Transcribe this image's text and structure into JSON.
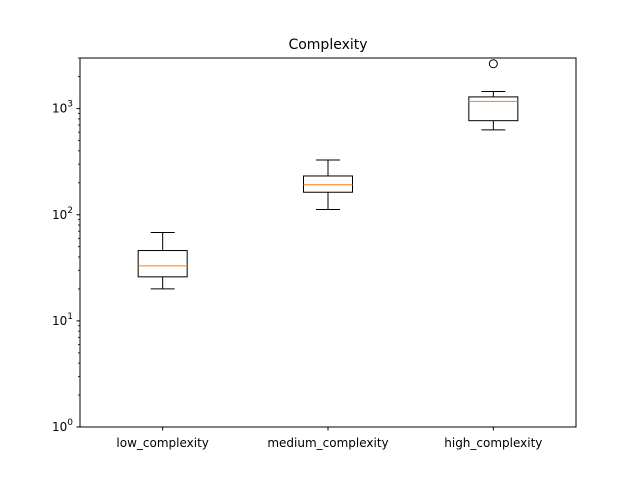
{
  "chart_data": {
    "type": "boxplot",
    "title": "Complexity",
    "xlabel": "",
    "ylabel": "",
    "yscale": "log",
    "ylim": [
      1,
      3000
    ],
    "yticks": [
      {
        "value": 1,
        "base": "10",
        "exp": "0"
      },
      {
        "value": 10,
        "base": "10",
        "exp": "1"
      },
      {
        "value": 100,
        "base": "10",
        "exp": "2"
      },
      {
        "value": 1000,
        "base": "10",
        "exp": "3"
      }
    ],
    "categories": [
      "low_complexity",
      "medium_complexity",
      "high_complexity"
    ],
    "boxes": [
      {
        "whisker_low": 20,
        "q1": 26,
        "median": 33,
        "q3": 46,
        "whisker_high": 68,
        "outliers": []
      },
      {
        "whisker_low": 112,
        "q1": 163,
        "median": 192,
        "q3": 232,
        "whisker_high": 328,
        "outliers": []
      },
      {
        "whisker_low": 630,
        "q1": 770,
        "median": 1170,
        "q3": 1290,
        "whisker_high": 1450,
        "outliers": [
          2650
        ]
      }
    ],
    "grid": false,
    "colors": {
      "box": "#000000",
      "median": "#ff7f0e",
      "background": "#ffffff"
    }
  }
}
